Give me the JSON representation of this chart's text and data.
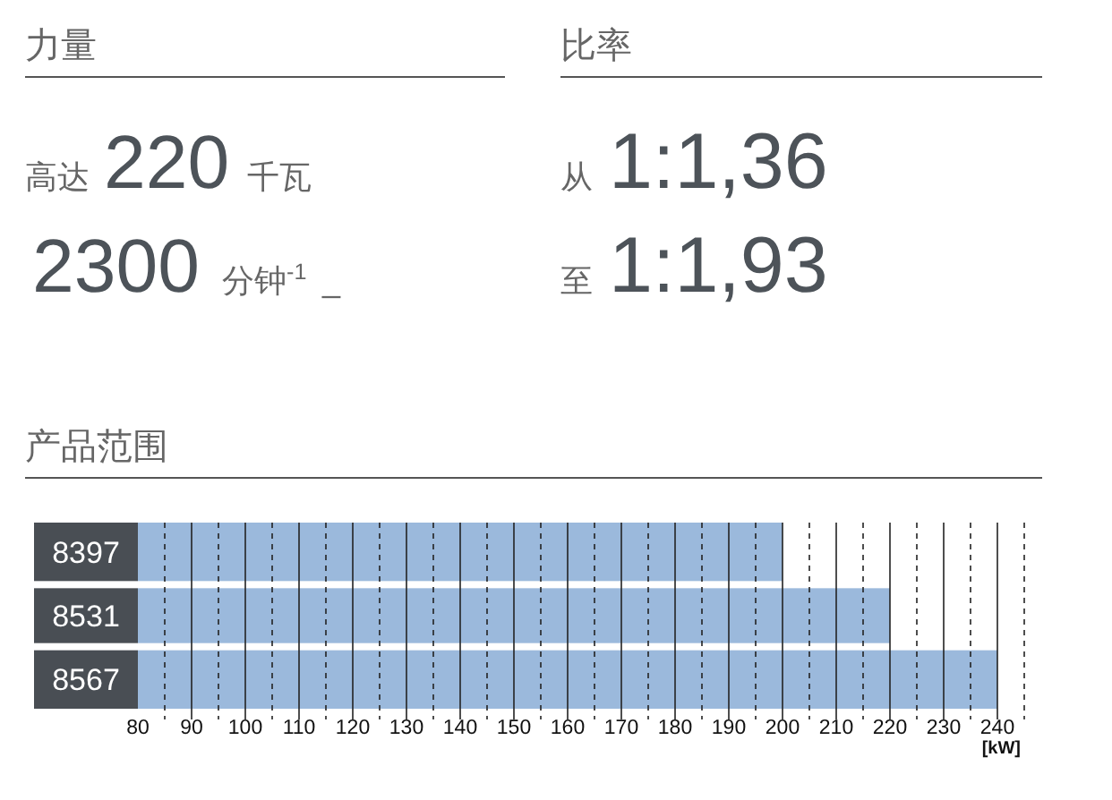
{
  "chart_data": [
    {
      "type": "other",
      "annotations": [
        "力量",
        "比率",
        "高达",
        "220",
        "千瓦",
        "2300",
        "分钟$^{-1}$",
        "_",
        "从",
        "1:1,36",
        "至",
        "1:1,93"
      ]
    },
    {
      "type": "bar",
      "title": "产品范围",
      "orientation": "horizontal",
      "categories": [
        "8397",
        "8531",
        "8567"
      ],
      "values": [
        200,
        220,
        240
      ],
      "color": "#9bb9dc",
      "xlabel": "[kW]",
      "xlim": [
        80,
        245
      ],
      "xticks": [
        80,
        {
          "value": 85,
          "label": null
        },
        90,
        {
          "value": 95,
          "label": null
        },
        100,
        {
          "value": 105,
          "label": null
        },
        110,
        {
          "value": 115,
          "label": null
        },
        120,
        {
          "value": 125,
          "label": null
        },
        130,
        {
          "value": 135,
          "label": null
        },
        140,
        {
          "value": 145,
          "label": null
        },
        150,
        {
          "value": 155,
          "label": null
        },
        160,
        {
          "value": 165,
          "label": null
        },
        170,
        {
          "value": 175,
          "label": null
        },
        180,
        {
          "value": 185,
          "label": null
        },
        190,
        {
          "value": 195,
          "label": null
        },
        200,
        {
          "value": 205,
          "label": null
        },
        210,
        {
          "value": 215,
          "label": null
        },
        220,
        {
          "value": 225,
          "label": null
        },
        230,
        {
          "value": 235,
          "label": null
        },
        240,
        {
          "value": 245,
          "label": null
        }
      ],
      "grid": "x"
    }
  ]
}
